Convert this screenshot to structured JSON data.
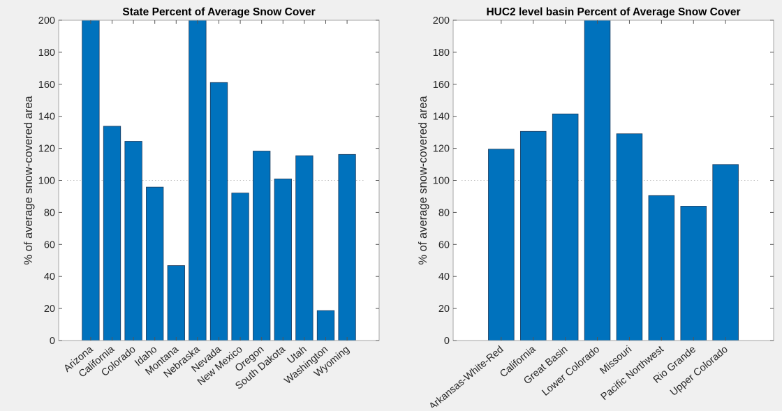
{
  "chart_data": [
    {
      "type": "bar",
      "title": "State Percent of Average Snow Cover",
      "xlabel": "",
      "ylabel": "% of average snow-covered area",
      "categories": [
        "Arizona",
        "California",
        "Colorado",
        "Idaho",
        "Montana",
        "Nebraska",
        "Nevada",
        "New Mexico",
        "Oregon",
        "South Dakota",
        "Utah",
        "Washington",
        "Wyoming"
      ],
      "values": [
        200,
        133.8,
        124.4,
        95.8,
        46.8,
        200,
        161.1,
        92.1,
        118.3,
        100.9,
        115.4,
        18.7,
        116.2
      ],
      "ylim": [
        0,
        200
      ],
      "yticks": [
        0,
        20,
        40,
        60,
        80,
        100,
        120,
        140,
        160,
        180,
        200
      ],
      "reference_line": 100,
      "grid": false,
      "bar_color": "#0072BD"
    },
    {
      "type": "bar",
      "title": "HUC2 level basin Percent of Average Snow Cover",
      "xlabel": "",
      "ylabel": "% of average snow-covered area",
      "categories": [
        "Arkansas-White-Red",
        "California",
        "Great Basin",
        "Lower Colorado",
        "Missouri",
        "Pacific Northwest",
        "Rio Grande",
        "Upper Colorado"
      ],
      "values": [
        119.5,
        130.6,
        141.5,
        200,
        129.1,
        90.5,
        83.9,
        109.9
      ],
      "ylim": [
        0,
        200
      ],
      "yticks": [
        0,
        20,
        40,
        60,
        80,
        100,
        120,
        140,
        160,
        180,
        200
      ],
      "reference_line": 100,
      "grid": false,
      "bar_color": "#0072BD"
    }
  ]
}
